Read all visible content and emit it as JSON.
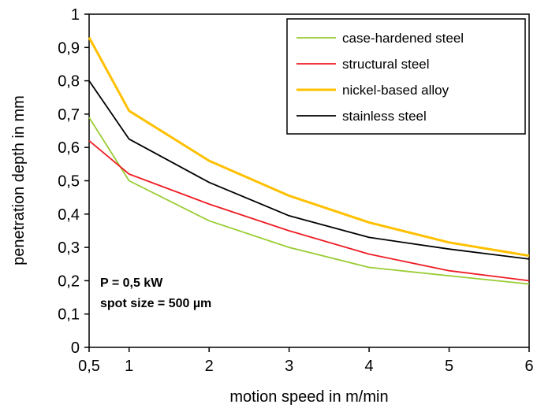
{
  "chart_data": {
    "type": "line",
    "title": "",
    "xlabel": "motion speed in m/min",
    "ylabel": "penetration depth in mm",
    "x": [
      0.5,
      1,
      2,
      3,
      4,
      5,
      6
    ],
    "x_tick_labels": [
      "0,5",
      "1",
      "2",
      "3",
      "4",
      "5",
      "6"
    ],
    "y_ticks": [
      0,
      0.1,
      0.2,
      0.3,
      0.4,
      0.5,
      0.6,
      0.7,
      0.8,
      0.9,
      1
    ],
    "y_tick_labels": [
      "0",
      "0,1",
      "0,2",
      "0,3",
      "0,4",
      "0,5",
      "0,6",
      "0,7",
      "0,8",
      "0,9",
      "1"
    ],
    "ylim": [
      0,
      1
    ],
    "grid": false,
    "legend_position": "top-right",
    "series": [
      {
        "name": "case-hardened steel",
        "color": "#99cc33",
        "values": [
          0.69,
          0.5,
          0.38,
          0.3,
          0.24,
          0.215,
          0.19
        ]
      },
      {
        "name": "structural steel",
        "color": "#ee1c24",
        "values": [
          0.62,
          0.52,
          0.43,
          0.35,
          0.28,
          0.23,
          0.2
        ]
      },
      {
        "name": "nickel-based alloy",
        "color": "#ffc000",
        "values": [
          0.93,
          0.71,
          0.56,
          0.455,
          0.375,
          0.315,
          0.275
        ]
      },
      {
        "name": "stainless steel",
        "color": "#000000",
        "values": [
          0.8,
          0.625,
          0.495,
          0.395,
          0.33,
          0.295,
          0.265
        ]
      }
    ],
    "annotations": [
      "P = 0,5 kW",
      "spot size = 500 µm"
    ]
  }
}
